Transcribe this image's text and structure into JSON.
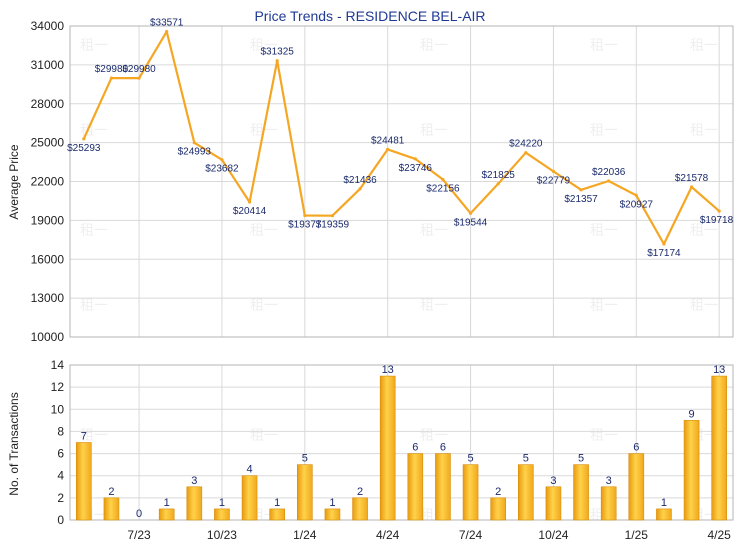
{
  "chart_data": [
    {
      "type": "line",
      "title": "Price Trends - RESIDENCE BEL-AIR",
      "ylabel": "Average Price",
      "ylim": [
        10000,
        34000
      ],
      "yticks": [
        "10000",
        "13000",
        "16000",
        "19000",
        "22000",
        "25000",
        "28000",
        "31000",
        "34000"
      ],
      "ytick_values": [
        10000,
        13000,
        16000,
        19000,
        22000,
        25000,
        28000,
        31000,
        34000
      ],
      "series": [
        {
          "values": [
            25293,
            29980,
            29980,
            33571,
            24993,
            23682,
            20414,
            31325,
            19377,
            19359,
            21436,
            24481,
            23746,
            22156,
            19544,
            21825,
            24220,
            22779,
            21357,
            22036,
            20927,
            17174,
            21578,
            19718
          ],
          "labels": [
            "$25293",
            "$29980",
            "$29980",
            "$33571",
            "$24993",
            "$23682",
            "$20414",
            "$31325",
            "$19377",
            "$19359",
            "$21436",
            "$24481",
            "$23746",
            "$22156",
            "$19544",
            "$21825",
            "$24220",
            "$22779",
            "$21357",
            "$22036",
            "$20927",
            "$17174",
            "$21578",
            "$19718"
          ],
          "color": "#f5a623"
        }
      ],
      "grid": true
    },
    {
      "type": "bar",
      "ylabel": "No. of Transactions",
      "ylim": [
        0,
        14
      ],
      "yticks": [
        "0",
        "2",
        "4",
        "6",
        "8",
        "10",
        "12",
        "14"
      ],
      "ytick_values": [
        0,
        2,
        4,
        6,
        8,
        10,
        12,
        14
      ],
      "values": [
        7,
        2,
        0,
        1,
        3,
        1,
        4,
        1,
        5,
        1,
        2,
        13,
        6,
        6,
        5,
        2,
        5,
        3,
        5,
        3,
        6,
        1,
        9,
        13
      ],
      "value_labels": [
        "7",
        "2",
        "0",
        "1",
        "3",
        "1",
        "4",
        "1",
        "5",
        "1",
        "2",
        "13",
        "6",
        "6",
        "5",
        "2",
        "5",
        "3",
        "5",
        "3",
        "6",
        "1",
        "9",
        "13"
      ],
      "xtick_labels": [
        "7/23",
        "10/23",
        "1/24",
        "4/24",
        "7/24",
        "10/24",
        "1/25",
        "4/25"
      ],
      "xtick_index": [
        2,
        5,
        8,
        11,
        14,
        17,
        20,
        23
      ],
      "color": "#f5a623",
      "grid": true
    }
  ],
  "watermark": "租一"
}
